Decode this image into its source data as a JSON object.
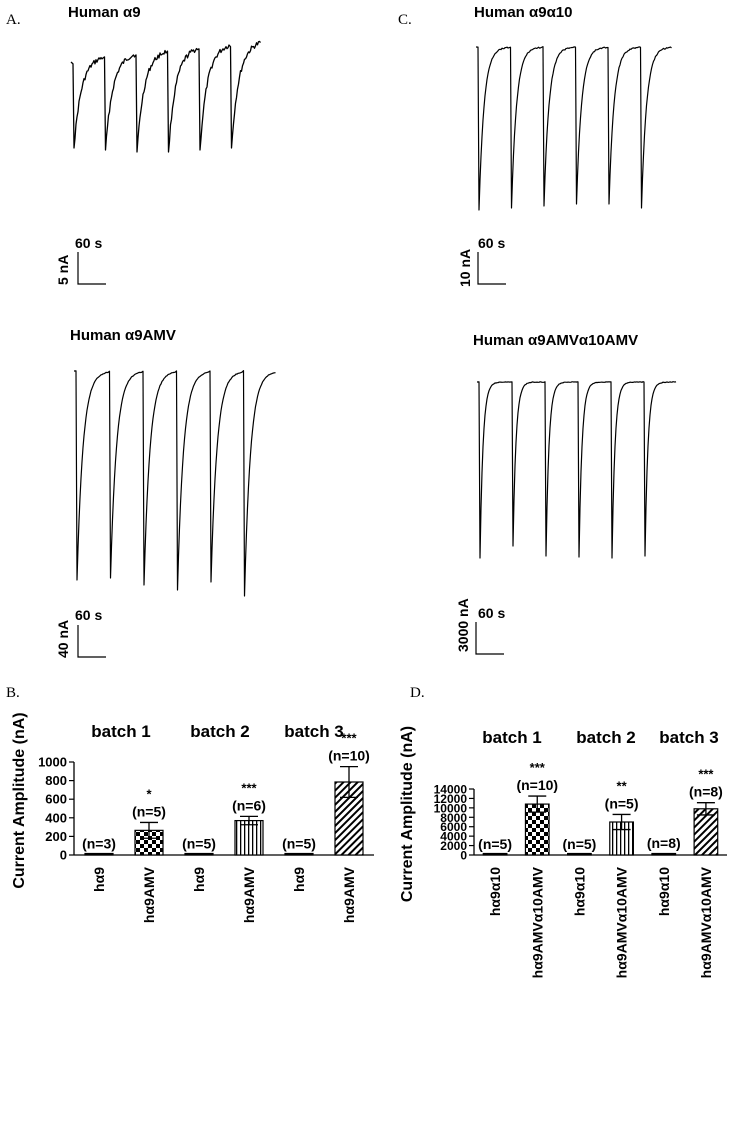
{
  "panels": {
    "A": {
      "letter": "A.",
      "trace1": {
        "title": "Human α9",
        "time_scale": "60 s",
        "amp_scale": "5 nA"
      },
      "trace2": {
        "title": "Human α9AMV",
        "time_scale": "60 s",
        "amp_scale": "40 nA"
      }
    },
    "C": {
      "letter": "C.",
      "trace1": {
        "title": "Human α9α10",
        "time_scale": "60 s",
        "amp_scale": "10 nA"
      },
      "trace2": {
        "title": "Human α9AMVα10AMV",
        "time_scale": "60 s",
        "amp_scale": "3000 nA"
      }
    },
    "B": {
      "letter": "B."
    },
    "D": {
      "letter": "D."
    }
  },
  "chart_data": [
    {
      "id": "B",
      "type": "bar",
      "ylabel": "Current Amplitude (nA)",
      "ylim": [
        0,
        1000
      ],
      "yticks": [
        0,
        200,
        400,
        600,
        800,
        1000
      ],
      "batches": [
        "batch 1",
        "batch 2",
        "batch 3"
      ],
      "categories": [
        "hα9",
        "hα9AMV",
        "hα9",
        "hα9AMV",
        "hα9",
        "hα9AMV"
      ],
      "values": [
        5,
        265,
        5,
        370,
        5,
        785
      ],
      "errors": [
        0,
        85,
        0,
        45,
        0,
        165
      ],
      "n_labels": [
        "(n=3)",
        "(n=5)",
        "(n=5)",
        "(n=6)",
        "(n=5)",
        "(n=10)"
      ],
      "significance": [
        "",
        "*",
        "",
        "***",
        "",
        "***"
      ],
      "patterns": [
        "solid",
        "checker",
        "solid",
        "vertical",
        "solid",
        "diagonal"
      ]
    },
    {
      "id": "D",
      "type": "bar",
      "ylabel": "Current Amplitude (nA)",
      "ylim": [
        0,
        14000
      ],
      "yticks": [
        0,
        2000,
        4000,
        6000,
        8000,
        10000,
        12000,
        14000
      ],
      "batches": [
        "batch 1",
        "batch 2",
        "batch 3"
      ],
      "categories": [
        "hα9α10",
        "hα9AMVα10AMV",
        "hα9α10",
        "hα9AMVα10AMV",
        "hα9α10",
        "hα9AMVα10AMV"
      ],
      "values": [
        30,
        10800,
        30,
        7000,
        250,
        9800
      ],
      "errors": [
        0,
        1700,
        0,
        1600,
        0,
        1300
      ],
      "n_labels": [
        "(n=5)",
        "(n=10)",
        "(n=5)",
        "(n=5)",
        "(n=8)",
        "(n=8)"
      ],
      "significance": [
        "",
        "***",
        "",
        "**",
        "",
        "***"
      ],
      "patterns": [
        "solid",
        "checker",
        "solid",
        "vertical",
        "solid",
        "diagonal"
      ]
    }
  ]
}
